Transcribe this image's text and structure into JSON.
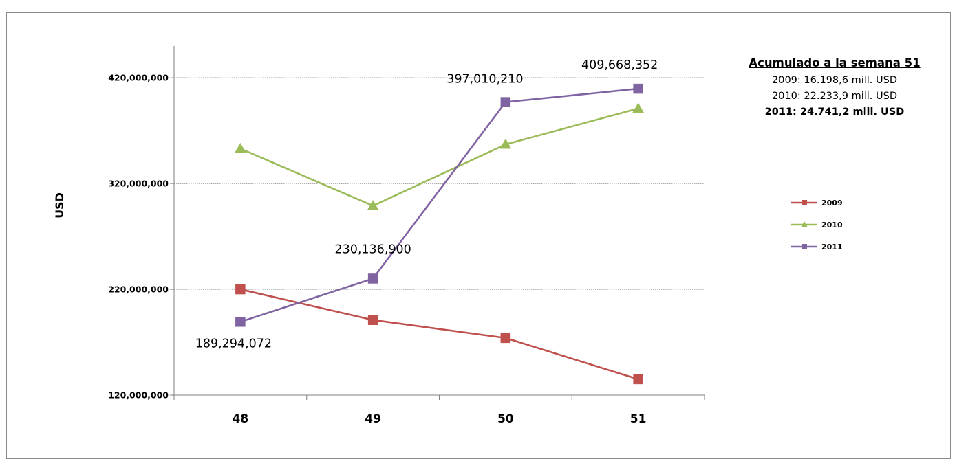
{
  "chart_data": {
    "type": "line",
    "ylabel": "USD",
    "xlabel": "",
    "categories": [
      "48",
      "49",
      "50",
      "51"
    ],
    "ylim": [
      120000000,
      450000000
    ],
    "yticks": [
      120000000,
      220000000,
      320000000,
      420000000
    ],
    "ytick_labels": [
      "120,000,000",
      "220,000,000",
      "320,000,000",
      "420,000,000"
    ],
    "grid": true,
    "legend_position": "right",
    "series": [
      {
        "name": "2009",
        "color": "#c0504d",
        "marker": "square",
        "values": [
          220000000,
          191000000,
          174000000,
          135000000
        ]
      },
      {
        "name": "2010",
        "color": "#9bbb59",
        "marker": "triangle",
        "values": [
          353000000,
          299000000,
          357000000,
          391000000
        ]
      },
      {
        "name": "2011",
        "color": "#8064a2",
        "marker": "square",
        "values": [
          189294072,
          230136900,
          397010210,
          409668352
        ]
      }
    ],
    "data_labels": [
      {
        "series": "2011",
        "category": "48",
        "text": "189,294,072"
      },
      {
        "series": "2011",
        "category": "49",
        "text": "230,136,900"
      },
      {
        "series": "2011",
        "category": "50",
        "text": "397,010,210"
      },
      {
        "series": "2011",
        "category": "51",
        "text": "409,668,352"
      }
    ]
  },
  "summary": {
    "title": "Acumulado a la semana 51",
    "lines": [
      {
        "text": "2009: 16.198,6 mill. USD",
        "bold": false
      },
      {
        "text": "2010: 22.233,9 mill. USD",
        "bold": false
      },
      {
        "text": "2011: 24.741,2 mill. USD",
        "bold": true
      }
    ]
  }
}
